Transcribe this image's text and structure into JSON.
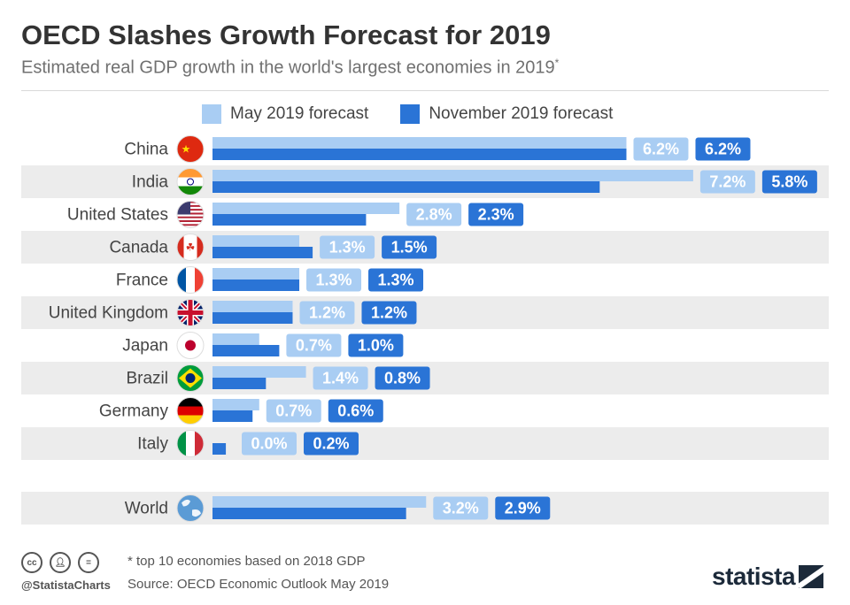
{
  "title": "OECD Slashes Growth Forecast for 2019",
  "subtitle": "Estimated real GDP growth in the world's largest economies in 2019",
  "subtitle_mark": "*",
  "colors": {
    "may": "#a9cdf3",
    "november": "#2a74d6",
    "row_band": "#ececec",
    "label_text": "#444444"
  },
  "chart_data": {
    "type": "bar",
    "orientation": "horizontal",
    "categories": [
      "China",
      "India",
      "United States",
      "Canada",
      "France",
      "United Kingdom",
      "Japan",
      "Brazil",
      "Germany",
      "Italy",
      "World"
    ],
    "series": [
      {
        "name": "May 2019 forecast",
        "values": [
          6.2,
          7.2,
          2.8,
          1.3,
          1.3,
          1.2,
          0.7,
          1.4,
          0.7,
          0.0,
          3.2
        ],
        "labels": [
          "6.2%",
          "7.2%",
          "2.8%",
          "1.3%",
          "1.3%",
          "1.2%",
          "0.7%",
          "1.4%",
          "0.7%",
          "0.0%",
          "3.2%"
        ]
      },
      {
        "name": "November 2019 forecast",
        "values": [
          6.2,
          5.8,
          2.3,
          1.5,
          1.3,
          1.2,
          1.0,
          0.8,
          0.6,
          0.2,
          2.9
        ],
        "labels": [
          "6.2%",
          "5.8%",
          "2.3%",
          "1.5%",
          "1.3%",
          "1.2%",
          "1.0%",
          "0.8%",
          "0.6%",
          "0.2%",
          "2.9%"
        ]
      }
    ],
    "flag_icons": [
      "china-flag-icon",
      "india-flag-icon",
      "usa-flag-icon",
      "canada-flag-icon",
      "france-flag-icon",
      "uk-flag-icon",
      "japan-flag-icon",
      "brazil-flag-icon",
      "germany-flag-icon",
      "italy-flag-icon",
      "world-globe-icon"
    ],
    "xlim": [
      0,
      7.2
    ],
    "grid": false,
    "legend_position": "top"
  },
  "footer": {
    "note": "* top 10 economies based on 2018 GDP",
    "source": "Source: OECD Economic Outlook May 2019",
    "handle": "@StatistaCharts",
    "brand": "statista",
    "cc_icons": [
      "cc",
      "by",
      "nd"
    ]
  }
}
